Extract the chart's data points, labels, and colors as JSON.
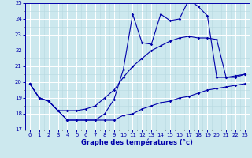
{
  "xlabel": "Graphe des températures (°c)",
  "bg_color": "#cce8ee",
  "line_color": "#0000aa",
  "grid_major_color": "#ffffff",
  "grid_minor_color": "#b8d8e0",
  "xlim": [
    -0.5,
    23.5
  ],
  "ylim": [
    17,
    25
  ],
  "yticks": [
    17,
    18,
    19,
    20,
    21,
    22,
    23,
    24,
    25
  ],
  "xticks": [
    0,
    1,
    2,
    3,
    4,
    5,
    6,
    7,
    8,
    9,
    10,
    11,
    12,
    13,
    14,
    15,
    16,
    17,
    18,
    19,
    20,
    21,
    22,
    23
  ],
  "temp_actual": [
    19.9,
    19.0,
    18.8,
    18.2,
    17.6,
    17.6,
    17.6,
    17.6,
    18.0,
    18.9,
    20.8,
    24.3,
    22.5,
    22.4,
    24.3,
    23.9,
    24.0,
    25.2,
    24.8,
    24.2,
    20.3,
    20.3,
    20.4,
    20.5
  ],
  "temp_min": [
    19.9,
    19.0,
    18.8,
    18.2,
    17.6,
    17.6,
    17.6,
    17.6,
    17.6,
    17.6,
    17.9,
    18.0,
    18.3,
    18.5,
    18.7,
    18.8,
    19.0,
    19.1,
    19.3,
    19.5,
    19.6,
    19.7,
    19.8,
    19.9
  ],
  "temp_max": [
    19.9,
    19.0,
    18.8,
    18.2,
    18.2,
    18.2,
    18.3,
    18.5,
    19.0,
    19.5,
    20.3,
    21.0,
    21.5,
    22.0,
    22.3,
    22.6,
    22.8,
    22.9,
    22.8,
    22.8,
    22.7,
    20.3,
    20.3,
    20.5
  ],
  "lw": 0.8,
  "ms": 1.8,
  "tick_labelsize": 5.0,
  "xlabel_fontsize": 6.0
}
